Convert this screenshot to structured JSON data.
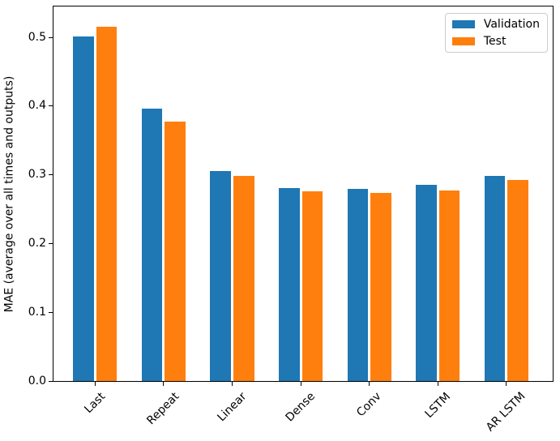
{
  "window": {
    "background": "#ffffff"
  },
  "chart_data": {
    "type": "bar",
    "title": "",
    "xlabel": "",
    "ylabel": "MAE (average over all times and outputs)",
    "categories": [
      "Last",
      "Repeat",
      "Linear",
      "Dense",
      "Conv",
      "LSTM",
      "AR LSTM"
    ],
    "series": [
      {
        "name": "Validation",
        "color": "#1f77b4",
        "values": [
          0.501,
          0.396,
          0.306,
          0.281,
          0.28,
          0.286,
          0.298
        ]
      },
      {
        "name": "Test",
        "color": "#ff7f0e",
        "values": [
          0.516,
          0.377,
          0.299,
          0.276,
          0.274,
          0.277,
          0.292
        ]
      }
    ],
    "ylim": [
      0,
      0.545
    ],
    "yticks": [
      0.0,
      0.1,
      0.2,
      0.3,
      0.4,
      0.5
    ],
    "xtick_rotation": 45,
    "grid": false,
    "legend": {
      "position": "upper right",
      "frame": true,
      "entries": [
        "Validation",
        "Test"
      ]
    },
    "axis_color": "#000000",
    "legend_border_color": "#cccccc"
  }
}
